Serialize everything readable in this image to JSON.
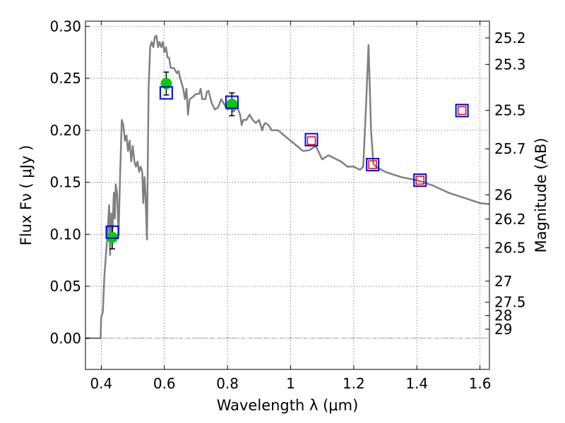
{
  "chart_data": {
    "type": "line",
    "xlabel": "Wavelength  λ (μm)",
    "ylabel": "Flux  Fν  ( μJy )",
    "ylabel_right": "Magnitude (AB)",
    "xlim": [
      0.35,
      1.63
    ],
    "ylim": [
      -0.03,
      0.305
    ],
    "grid": true,
    "x_ticks": [
      0.4,
      0.6,
      0.8,
      1.0,
      1.2,
      1.4,
      1.6
    ],
    "x_tick_labels": [
      "0.4",
      "0.6",
      "0.8",
      "1",
      "1.2",
      "1.4",
      "1.6"
    ],
    "y_ticks": [
      0.0,
      0.05,
      0.1,
      0.15,
      0.2,
      0.25,
      0.3
    ],
    "y_tick_labels": [
      "0.00",
      "0.05",
      "0.10",
      "0.15",
      "0.20",
      "0.25",
      "0.30"
    ],
    "mag_ticks": [
      {
        "label": "25.2",
        "flux": 0.2888
      },
      {
        "label": "25.3",
        "flux": 0.2634
      },
      {
        "label": "25.5",
        "flux": 0.2191
      },
      {
        "label": "25.7",
        "flux": 0.1822
      },
      {
        "label": "26",
        "flux": 0.138
      },
      {
        "label": "26.2",
        "flux": 0.1146
      },
      {
        "label": "26.5",
        "flux": 0.087
      },
      {
        "label": "27",
        "flux": 0.0549
      },
      {
        "label": "27.5",
        "flux": 0.0346
      },
      {
        "label": "28",
        "flux": 0.0218
      },
      {
        "label": "29",
        "flux": 0.0087
      }
    ],
    "series": [
      {
        "kind": "model_spectrum",
        "color": "#808080",
        "points": [
          [
            0.35,
            0.0
          ],
          [
            0.398,
            0.0
          ],
          [
            0.4,
            0.02
          ],
          [
            0.405,
            0.025
          ],
          [
            0.41,
            0.06
          ],
          [
            0.415,
            0.08
          ],
          [
            0.42,
            0.1
          ],
          [
            0.425,
            0.128
          ],
          [
            0.428,
            0.08
          ],
          [
            0.432,
            0.12
          ],
          [
            0.435,
            0.1
          ],
          [
            0.44,
            0.14
          ],
          [
            0.443,
            0.115
          ],
          [
            0.446,
            0.148
          ],
          [
            0.45,
            0.14
          ],
          [
            0.455,
            0.1
          ],
          [
            0.46,
            0.16
          ],
          [
            0.465,
            0.21
          ],
          [
            0.47,
            0.205
          ],
          [
            0.475,
            0.19
          ],
          [
            0.48,
            0.195
          ],
          [
            0.485,
            0.18
          ],
          [
            0.49,
            0.19
          ],
          [
            0.495,
            0.17
          ],
          [
            0.5,
            0.185
          ],
          [
            0.505,
            0.17
          ],
          [
            0.51,
            0.165
          ],
          [
            0.515,
            0.17
          ],
          [
            0.52,
            0.16
          ],
          [
            0.525,
            0.165
          ],
          [
            0.53,
            0.16
          ],
          [
            0.533,
            0.13
          ],
          [
            0.537,
            0.155
          ],
          [
            0.54,
            0.14
          ],
          [
            0.545,
            0.095
          ],
          [
            0.55,
            0.24
          ],
          [
            0.555,
            0.28
          ],
          [
            0.56,
            0.285
          ],
          [
            0.565,
            0.28
          ],
          [
            0.57,
            0.29
          ],
          [
            0.575,
            0.291
          ],
          [
            0.58,
            0.28
          ],
          [
            0.585,
            0.285
          ],
          [
            0.59,
            0.28
          ],
          [
            0.595,
            0.285
          ],
          [
            0.6,
            0.275
          ],
          [
            0.605,
            0.28
          ],
          [
            0.61,
            0.27
          ],
          [
            0.615,
            0.27
          ],
          [
            0.62,
            0.26
          ],
          [
            0.63,
            0.26
          ],
          [
            0.64,
            0.255
          ],
          [
            0.645,
            0.257
          ],
          [
            0.65,
            0.25
          ],
          [
            0.66,
            0.24
          ],
          [
            0.665,
            0.23
          ],
          [
            0.67,
            0.24
          ],
          [
            0.675,
            0.215
          ],
          [
            0.68,
            0.23
          ],
          [
            0.69,
            0.232
          ],
          [
            0.7,
            0.235
          ],
          [
            0.71,
            0.235
          ],
          [
            0.715,
            0.24
          ],
          [
            0.72,
            0.23
          ],
          [
            0.73,
            0.23
          ],
          [
            0.735,
            0.237
          ],
          [
            0.74,
            0.238
          ],
          [
            0.745,
            0.232
          ],
          [
            0.75,
            0.226
          ],
          [
            0.76,
            0.22
          ],
          [
            0.77,
            0.222
          ],
          [
            0.78,
            0.23
          ],
          [
            0.79,
            0.225
          ],
          [
            0.8,
            0.22
          ],
          [
            0.81,
            0.222
          ],
          [
            0.82,
            0.218
          ],
          [
            0.83,
            0.223
          ],
          [
            0.84,
            0.215
          ],
          [
            0.845,
            0.205
          ],
          [
            0.85,
            0.21
          ],
          [
            0.86,
            0.21
          ],
          [
            0.87,
            0.215
          ],
          [
            0.88,
            0.21
          ],
          [
            0.89,
            0.207
          ],
          [
            0.9,
            0.21
          ],
          [
            0.91,
            0.2
          ],
          [
            0.915,
            0.205
          ],
          [
            0.92,
            0.207
          ],
          [
            0.93,
            0.205
          ],
          [
            0.94,
            0.2
          ],
          [
            0.96,
            0.2
          ],
          [
            0.98,
            0.195
          ],
          [
            1.0,
            0.19
          ],
          [
            1.02,
            0.185
          ],
          [
            1.04,
            0.18
          ],
          [
            1.06,
            0.181
          ],
          [
            1.08,
            0.185
          ],
          [
            1.1,
            0.172
          ],
          [
            1.12,
            0.176
          ],
          [
            1.14,
            0.173
          ],
          [
            1.16,
            0.17
          ],
          [
            1.18,
            0.165
          ],
          [
            1.2,
            0.165
          ],
          [
            1.22,
            0.162
          ],
          [
            1.23,
            0.165
          ],
          [
            1.24,
            0.23
          ],
          [
            1.247,
            0.282
          ],
          [
            1.255,
            0.2
          ],
          [
            1.262,
            0.168
          ],
          [
            1.27,
            0.165
          ],
          [
            1.3,
            0.16
          ],
          [
            1.35,
            0.155
          ],
          [
            1.4,
            0.152
          ],
          [
            1.45,
            0.147
          ],
          [
            1.5,
            0.14
          ],
          [
            1.55,
            0.135
          ],
          [
            1.6,
            0.13
          ],
          [
            1.63,
            0.129
          ]
        ]
      },
      {
        "kind": "observed_photometry",
        "color": "#00cc00",
        "error_color": "#000000",
        "points": [
          {
            "x": 0.435,
            "y": 0.097,
            "yerr": 0.011
          },
          {
            "x": 0.606,
            "y": 0.245,
            "yerr": 0.011
          },
          {
            "x": 0.814,
            "y": 0.225,
            "yerr": 0.011
          }
        ]
      },
      {
        "kind": "model_photometry",
        "color": "#0000ff",
        "points": [
          {
            "x": 0.435,
            "y": 0.102
          },
          {
            "x": 0.606,
            "y": 0.236
          },
          {
            "x": 0.814,
            "y": 0.227
          },
          {
            "x": 1.066,
            "y": 0.191
          },
          {
            "x": 1.26,
            "y": 0.167
          },
          {
            "x": 1.41,
            "y": 0.152
          },
          {
            "x": 1.543,
            "y": 0.219
          }
        ]
      },
      {
        "kind": "upper_limit_photometry",
        "color": "#ff0000",
        "points": [
          {
            "x": 1.066,
            "y": 0.19
          },
          {
            "x": 1.26,
            "y": 0.167
          },
          {
            "x": 1.41,
            "y": 0.152
          },
          {
            "x": 1.543,
            "y": 0.219
          }
        ]
      }
    ]
  }
}
